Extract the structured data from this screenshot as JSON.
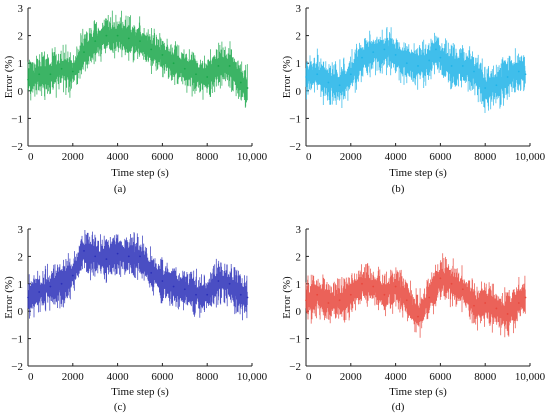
{
  "chart_data": [
    {
      "panel": "(a)",
      "type": "line",
      "xlabel": "Time step (s)",
      "ylabel": "Error (%)",
      "xlim": [
        0,
        10000
      ],
      "ylim": [
        -2,
        3
      ],
      "xticks": [
        "0",
        "2000",
        "4000",
        "6000",
        "8000",
        "10,000"
      ],
      "yticks": [
        "−2",
        "−1",
        "0",
        "1",
        "2",
        "3"
      ],
      "grid": false,
      "legend": "none",
      "color": "#1aa74a",
      "series": [
        {
          "x": [
            0,
            500,
            1000,
            1500,
            2000,
            2500,
            3000,
            3500,
            4000,
            4500,
            5000,
            5500,
            6000,
            6500,
            7000,
            7500,
            8000,
            8500,
            9000,
            9500,
            9800
          ],
          "values": [
            0.4,
            0.6,
            0.6,
            0.8,
            0.7,
            1.4,
            1.8,
            2.0,
            2.0,
            1.9,
            1.8,
            1.5,
            1.3,
            1.0,
            0.8,
            0.6,
            0.5,
            0.9,
            0.9,
            0.3,
            0.1
          ]
        }
      ]
    },
    {
      "panel": "(b)",
      "type": "line",
      "xlabel": "Time step (s)",
      "ylabel": "Error (%)",
      "xlim": [
        0,
        10000
      ],
      "ylim": [
        -2,
        3
      ],
      "xticks": [
        "0",
        "2000",
        "4000",
        "6000",
        "8000",
        "10,000"
      ],
      "yticks": [
        "−2",
        "−1",
        "0",
        "1",
        "2",
        "3"
      ],
      "grid": false,
      "legend": "none",
      "color": "#1fb3e8",
      "series": [
        {
          "x": [
            0,
            500,
            1000,
            1500,
            2000,
            2500,
            3000,
            3500,
            4000,
            4500,
            5000,
            5500,
            5800,
            6000,
            6500,
            7000,
            7500,
            8000,
            8500,
            9000,
            9500,
            9800
          ],
          "values": [
            0.5,
            0.6,
            0.3,
            0.2,
            0.6,
            1.2,
            1.4,
            1.5,
            1.3,
            1.0,
            0.9,
            1.1,
            1.5,
            1.2,
            0.9,
            0.9,
            0.7,
            0.1,
            0.2,
            0.5,
            0.7,
            0.6
          ]
        }
      ]
    },
    {
      "panel": "(c)",
      "type": "line",
      "xlabel": "Time step (s)",
      "ylabel": "Error (%)",
      "xlim": [
        0,
        10000
      ],
      "ylim": [
        -2,
        3
      ],
      "xticks": [
        "0",
        "2000",
        "4000",
        "6000",
        "8000",
        "10,000"
      ],
      "yticks": [
        "−2",
        "−1",
        "0",
        "1",
        "2",
        "3"
      ],
      "grid": false,
      "legend": "none",
      "color": "#2a2fb8",
      "series": [
        {
          "x": [
            0,
            500,
            1000,
            1500,
            2000,
            2500,
            3000,
            3500,
            4000,
            4500,
            5000,
            5500,
            6000,
            6500,
            7000,
            7500,
            8000,
            8500,
            9000,
            9500,
            9800
          ],
          "values": [
            0.5,
            0.7,
            0.9,
            1.0,
            1.3,
            2.2,
            2.0,
            1.9,
            2.1,
            2.0,
            2.0,
            1.4,
            1.1,
            0.9,
            0.8,
            0.6,
            0.6,
            1.1,
            1.0,
            0.6,
            0.5
          ]
        }
      ]
    },
    {
      "panel": "(d)",
      "type": "line",
      "xlabel": "Time step (s)",
      "ylabel": "Error (%)",
      "xlim": [
        0,
        10000
      ],
      "ylim": [
        -2,
        3
      ],
      "xticks": [
        "0",
        "2000",
        "4000",
        "6000",
        "8000",
        "10,000"
      ],
      "yticks": [
        "−2",
        "−1",
        "0",
        "1",
        "2",
        "3"
      ],
      "grid": false,
      "legend": "none",
      "color": "#e8473c",
      "series": [
        {
          "x": [
            0,
            500,
            1000,
            1500,
            2000,
            2500,
            3000,
            3500,
            4000,
            4500,
            5000,
            5500,
            6000,
            6500,
            7000,
            7500,
            8000,
            8500,
            9000,
            9500,
            9800
          ],
          "values": [
            0.4,
            0.6,
            0.3,
            0.4,
            0.6,
            1.0,
            0.9,
            0.6,
            0.9,
            0.4,
            -0.2,
            0.5,
            1.2,
            1.0,
            0.8,
            0.2,
            0.3,
            0.1,
            -0.1,
            0.3,
            0.5
          ]
        }
      ]
    }
  ]
}
